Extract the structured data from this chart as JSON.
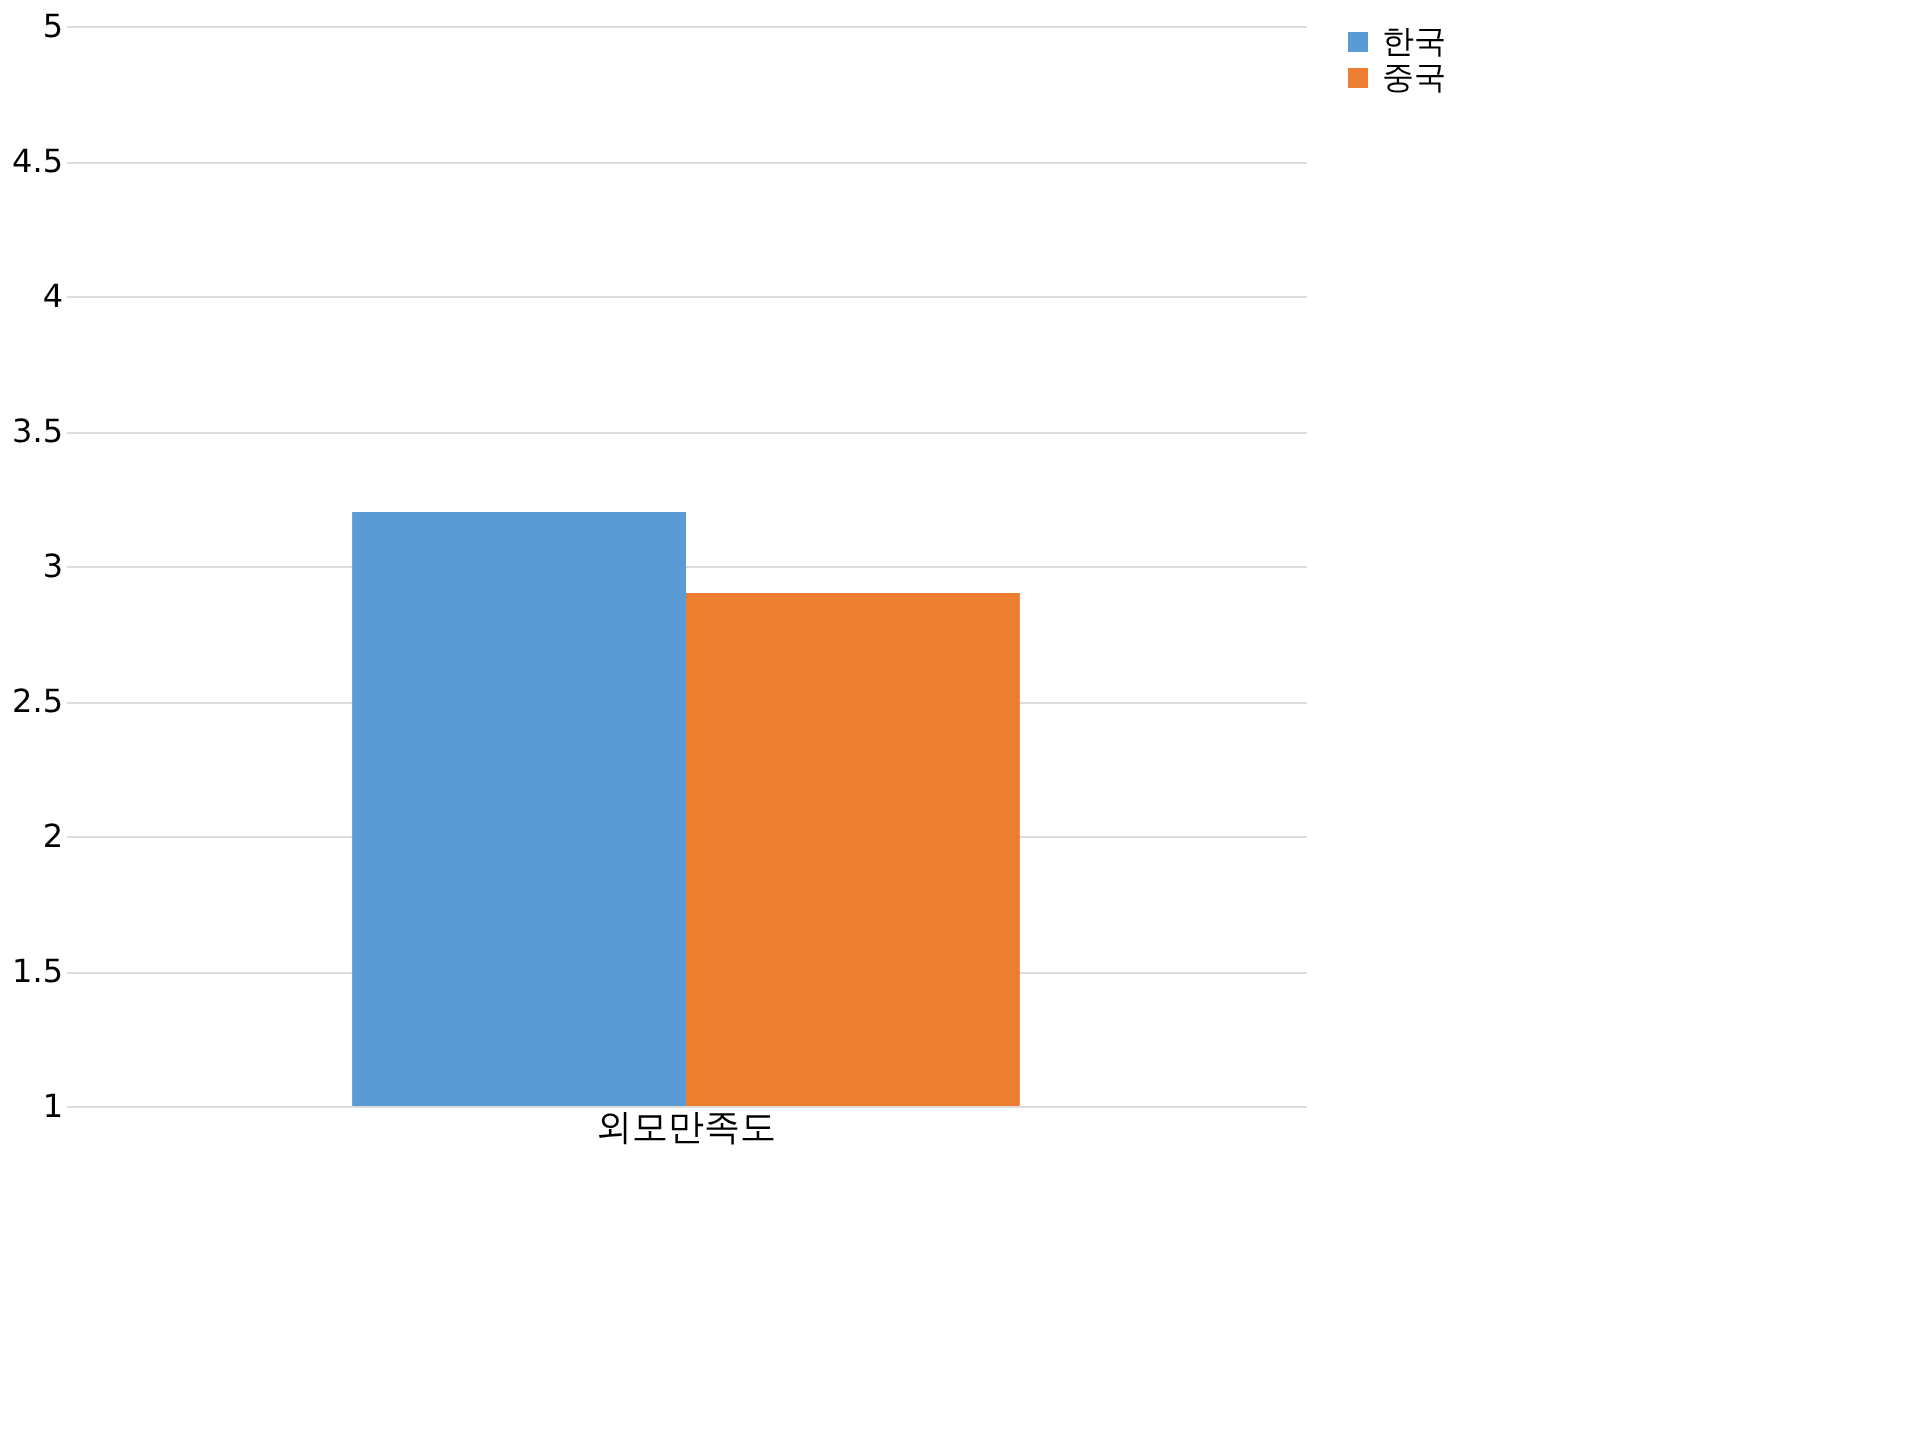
{
  "chart_data": {
    "type": "bar",
    "categories": [
      "외모만족도"
    ],
    "series": [
      {
        "name": "한국",
        "color": "#5b9bd5",
        "values": [
          3.2
        ]
      },
      {
        "name": "중국",
        "color": "#ed7d31",
        "values": [
          2.9
        ]
      }
    ],
    "ylim": [
      1,
      5
    ],
    "yticks": [
      1,
      1.5,
      2,
      2.5,
      3,
      3.5,
      4,
      4.5,
      5
    ],
    "grid": "y",
    "legend": "right"
  }
}
